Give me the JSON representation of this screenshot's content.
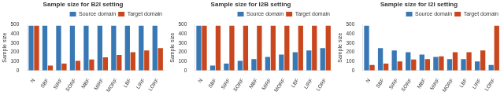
{
  "chart_data": [
    {
      "type": "bar",
      "title": "Sample size for B2I setting",
      "categories": [
        "N",
        "SBF",
        "SIRF",
        "SORF",
        "MBF",
        "MIRF",
        "MORF",
        "LBF",
        "LIRF",
        "LORF"
      ],
      "series": [
        {
          "name": "Source domain",
          "color": "#3878b4",
          "values": [
            490,
            490,
            490,
            490,
            490,
            490,
            490,
            490,
            490,
            490
          ]
        },
        {
          "name": "Target domain",
          "color": "#c8471e",
          "values": [
            490,
            55,
            75,
            105,
            120,
            145,
            170,
            200,
            220,
            245
          ]
        }
      ],
      "ylabel": "Sample size",
      "ylim": [
        0,
        500
      ],
      "yticks": [
        0,
        100,
        200,
        300,
        400,
        500
      ],
      "grid": false,
      "legend": "upper right"
    },
    {
      "type": "bar",
      "title": "Sample size for I2B setting",
      "categories": [
        "N",
        "SBF",
        "SIRF",
        "SORF",
        "MBF",
        "MIRF",
        "MORF",
        "LBF",
        "LIRF",
        "LORF"
      ],
      "series": [
        {
          "name": "Source domain",
          "color": "#3878b4",
          "values": [
            490,
            55,
            75,
            105,
            125,
            150,
            175,
            200,
            220,
            245
          ]
        },
        {
          "name": "Target domain",
          "color": "#c8471e",
          "values": [
            490,
            490,
            490,
            490,
            490,
            490,
            490,
            490,
            490,
            490
          ]
        }
      ],
      "ylabel": "Sample size",
      "ylim": [
        0,
        500
      ],
      "yticks": [
        0,
        100,
        200,
        300,
        400,
        500
      ],
      "grid": false,
      "legend": "upper right"
    },
    {
      "type": "bar",
      "title": "Sample size for I2I setting",
      "categories": [
        "N",
        "SBF",
        "SIRF",
        "SORF",
        "MBF",
        "MIRF",
        "MORF",
        "LBF",
        "LIRF",
        "LORF"
      ],
      "series": [
        {
          "name": "Source domain",
          "color": "#3878b4",
          "values": [
            490,
            245,
            220,
            200,
            175,
            150,
            125,
            125,
            100,
            60
          ]
        },
        {
          "name": "Target domain",
          "color": "#c8471e",
          "values": [
            60,
            75,
            100,
            120,
            125,
            155,
            200,
            200,
            220,
            490
          ]
        }
      ],
      "ylabel": "Sample size",
      "ylim": [
        0,
        500
      ],
      "yticks": [
        0,
        100,
        200,
        300,
        400,
        500
      ],
      "grid": false,
      "legend": "upper right"
    }
  ]
}
